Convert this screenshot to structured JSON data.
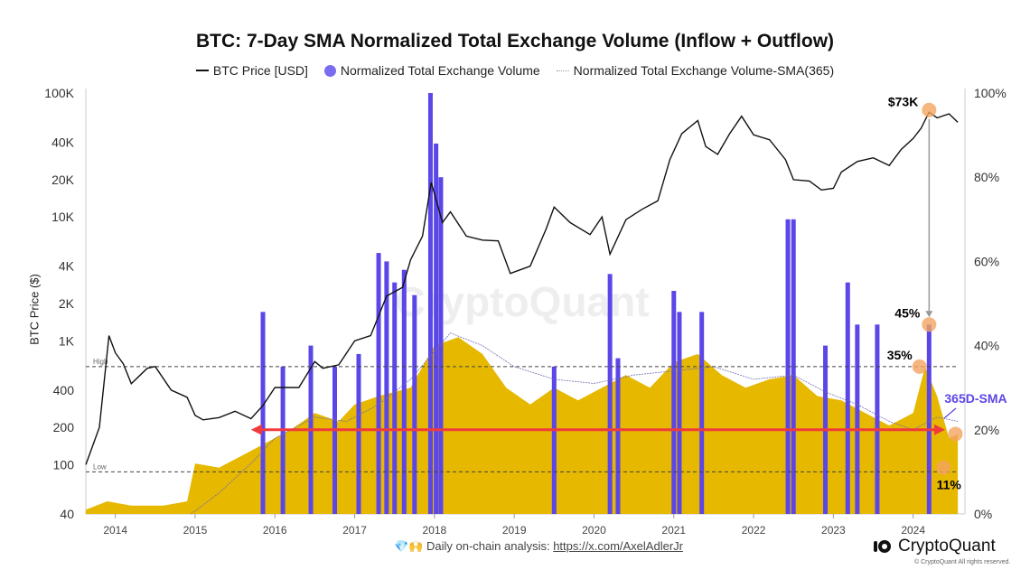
{
  "chart_data": {
    "type": "bar+line",
    "title": "BTC: 7-Day SMA Normalized Total Exchange Volume (Inflow + Outflow)",
    "legend_position": "top",
    "legend": [
      "BTC Price [USD]",
      "Normalized Total Exchange Volume",
      "Normalized Total Exchange Volume-SMA(365)"
    ],
    "ylabel_left": "BTC Price ($)",
    "left_axis": {
      "scale": "log",
      "range": [
        40,
        100000
      ],
      "ticks": [
        "100K",
        "40K",
        "20K",
        "10K",
        "4K",
        "2K",
        "1K",
        "400",
        "200",
        "100",
        "40"
      ],
      "tick_values": [
        100000,
        40000,
        20000,
        10000,
        4000,
        2000,
        1000,
        400,
        200,
        100,
        40
      ]
    },
    "right_axis": {
      "range": [
        0,
        100
      ],
      "ticks": [
        "100%",
        "80%",
        "60%",
        "40%",
        "20%",
        "0%"
      ],
      "tick_values": [
        100,
        80,
        60,
        40,
        20,
        0
      ]
    },
    "x_axis": {
      "range": [
        2013.63,
        2024.6
      ],
      "ticks": [
        "2014",
        "2015",
        "2016",
        "2017",
        "2018",
        "2019",
        "2020",
        "2021",
        "2022",
        "2023",
        "2024"
      ]
    },
    "colors": {
      "price": "#111111",
      "volume": "#e6b800",
      "volume_spike": "#5b46e8",
      "sma": "#6f6fb0",
      "arrow": "#ef3b3b",
      "marker": "#f4a460"
    },
    "btc_price": [
      [
        2013.63,
        100
      ],
      [
        2013.8,
        200
      ],
      [
        2013.92,
        1100
      ],
      [
        2014.0,
        800
      ],
      [
        2014.1,
        650
      ],
      [
        2014.2,
        450
      ],
      [
        2014.4,
        600
      ],
      [
        2014.5,
        620
      ],
      [
        2014.7,
        400
      ],
      [
        2014.9,
        350
      ],
      [
        2015.0,
        250
      ],
      [
        2015.1,
        230
      ],
      [
        2015.3,
        240
      ],
      [
        2015.5,
        270
      ],
      [
        2015.7,
        235
      ],
      [
        2015.85,
        300
      ],
      [
        2016.0,
        420
      ],
      [
        2016.3,
        420
      ],
      [
        2016.5,
        680
      ],
      [
        2016.6,
        600
      ],
      [
        2016.8,
        640
      ],
      [
        2017.0,
        1000
      ],
      [
        2017.2,
        1100
      ],
      [
        2017.4,
        2300
      ],
      [
        2017.6,
        2700
      ],
      [
        2017.7,
        4500
      ],
      [
        2017.85,
        7000
      ],
      [
        2017.96,
        19000
      ],
      [
        2018.1,
        9000
      ],
      [
        2018.2,
        11000
      ],
      [
        2018.4,
        7000
      ],
      [
        2018.6,
        6500
      ],
      [
        2018.8,
        6400
      ],
      [
        2018.95,
        3500
      ],
      [
        2019.2,
        4000
      ],
      [
        2019.4,
        8000
      ],
      [
        2019.5,
        12000
      ],
      [
        2019.7,
        9000
      ],
      [
        2019.95,
        7200
      ],
      [
        2020.1,
        10000
      ],
      [
        2020.2,
        5000
      ],
      [
        2020.4,
        9500
      ],
      [
        2020.6,
        11500
      ],
      [
        2020.8,
        13500
      ],
      [
        2020.95,
        29000
      ],
      [
        2021.1,
        47000
      ],
      [
        2021.3,
        60000
      ],
      [
        2021.4,
        37000
      ],
      [
        2021.55,
        32000
      ],
      [
        2021.7,
        47000
      ],
      [
        2021.85,
        65000
      ],
      [
        2022.0,
        46000
      ],
      [
        2022.2,
        42000
      ],
      [
        2022.4,
        29000
      ],
      [
        2022.5,
        20000
      ],
      [
        2022.7,
        19500
      ],
      [
        2022.85,
        16500
      ],
      [
        2023.0,
        17000
      ],
      [
        2023.1,
        23000
      ],
      [
        2023.3,
        28000
      ],
      [
        2023.5,
        30000
      ],
      [
        2023.7,
        26000
      ],
      [
        2023.85,
        35000
      ],
      [
        2024.0,
        43000
      ],
      [
        2024.1,
        52000
      ],
      [
        2024.2,
        70000
      ],
      [
        2024.3,
        63000
      ],
      [
        2024.45,
        68000
      ],
      [
        2024.56,
        58000
      ]
    ],
    "volume_pct": [
      [
        2013.63,
        1
      ],
      [
        2013.9,
        3
      ],
      [
        2014.2,
        2
      ],
      [
        2014.6,
        2
      ],
      [
        2014.9,
        3
      ],
      [
        2015.0,
        12
      ],
      [
        2015.3,
        11
      ],
      [
        2015.6,
        14
      ],
      [
        2015.9,
        17
      ],
      [
        2016.2,
        20
      ],
      [
        2016.5,
        24
      ],
      [
        2016.8,
        22
      ],
      [
        2017.0,
        26
      ],
      [
        2017.3,
        28
      ],
      [
        2017.7,
        30
      ],
      [
        2018.0,
        40
      ],
      [
        2018.3,
        42
      ],
      [
        2018.6,
        38
      ],
      [
        2018.9,
        30
      ],
      [
        2019.2,
        26
      ],
      [
        2019.5,
        30
      ],
      [
        2019.8,
        27
      ],
      [
        2020.1,
        30
      ],
      [
        2020.4,
        33
      ],
      [
        2020.7,
        30
      ],
      [
        2021.0,
        36
      ],
      [
        2021.3,
        38
      ],
      [
        2021.6,
        33
      ],
      [
        2021.9,
        30
      ],
      [
        2022.2,
        32
      ],
      [
        2022.5,
        33
      ],
      [
        2022.8,
        28
      ],
      [
        2023.1,
        27
      ],
      [
        2023.4,
        24
      ],
      [
        2023.7,
        21
      ],
      [
        2024.0,
        24
      ],
      [
        2024.15,
        35
      ],
      [
        2024.3,
        28
      ],
      [
        2024.45,
        18
      ],
      [
        2024.56,
        19
      ]
    ],
    "volume_spikes": [
      [
        2015.85,
        48
      ],
      [
        2016.1,
        35
      ],
      [
        2016.45,
        40
      ],
      [
        2016.75,
        35
      ],
      [
        2017.05,
        38
      ],
      [
        2017.3,
        62
      ],
      [
        2017.4,
        60
      ],
      [
        2017.5,
        55
      ],
      [
        2017.62,
        58
      ],
      [
        2017.75,
        52
      ],
      [
        2017.95,
        100
      ],
      [
        2018.02,
        88
      ],
      [
        2018.08,
        80
      ],
      [
        2019.5,
        35
      ],
      [
        2020.2,
        57
      ],
      [
        2020.3,
        37
      ],
      [
        2021.0,
        53
      ],
      [
        2021.07,
        48
      ],
      [
        2021.35,
        48
      ],
      [
        2022.43,
        70
      ],
      [
        2022.5,
        70
      ],
      [
        2022.9,
        40
      ],
      [
        2023.18,
        55
      ],
      [
        2023.3,
        45
      ],
      [
        2023.55,
        45
      ],
      [
        2024.2,
        45
      ]
    ],
    "volume_sma365": [
      [
        2014.95,
        0
      ],
      [
        2015.3,
        5
      ],
      [
        2015.7,
        12
      ],
      [
        2016.0,
        18
      ],
      [
        2016.5,
        23
      ],
      [
        2016.9,
        22
      ],
      [
        2017.3,
        26
      ],
      [
        2017.7,
        32
      ],
      [
        2018.2,
        43
      ],
      [
        2018.6,
        40
      ],
      [
        2019.0,
        35
      ],
      [
        2019.5,
        32
      ],
      [
        2020.0,
        31
      ],
      [
        2020.5,
        33
      ],
      [
        2021.0,
        34
      ],
      [
        2021.5,
        35
      ],
      [
        2022.0,
        32
      ],
      [
        2022.5,
        33
      ],
      [
        2022.9,
        29
      ],
      [
        2023.3,
        26
      ],
      [
        2023.7,
        22
      ],
      [
        2024.0,
        20
      ],
      [
        2024.3,
        23
      ],
      [
        2024.56,
        22
      ]
    ],
    "reference_lines": [
      {
        "label": "High",
        "value_pct": 35
      },
      {
        "label": "Low",
        "value_pct": 10
      }
    ],
    "annotations": [
      {
        "text": "$73K",
        "x": 2024.2,
        "y_price": 73000
      },
      {
        "text": "45%",
        "x": 2024.2,
        "y_pct": 45
      },
      {
        "text": "35%",
        "x": 2024.08,
        "y_pct": 35
      },
      {
        "text": "11%",
        "x": 2024.38,
        "y_pct": 11
      },
      {
        "text": "365D-SMA",
        "x": 2024.5,
        "y_pct": 27
      }
    ],
    "current_marker": {
      "x": 2024.53,
      "y_pct": 19
    },
    "arrow_level_pct": 20,
    "arrow_range": [
      2015.7,
      2024.4
    ]
  },
  "footer": {
    "emoji": "💎🙌",
    "text": "Daily on-chain analysis:",
    "link": "https://x.com/AxelAdlerJr"
  },
  "brand": {
    "name": "CryptoQuant",
    "copyright": "© CryptoQuant All rights reserved.",
    "watermark": "CryptoQuant"
  }
}
